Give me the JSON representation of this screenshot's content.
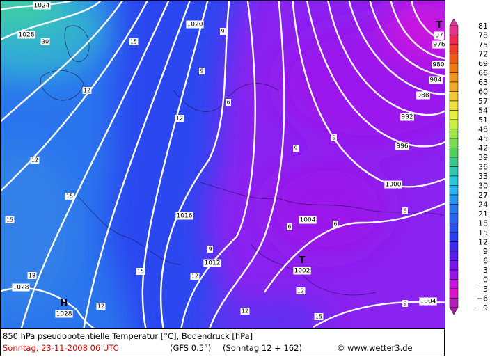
{
  "map": {
    "colorbar": [
      "81",
      "78",
      "75",
      "72",
      "69",
      "66",
      "63",
      "60",
      "57",
      "54",
      "51",
      "48",
      "45",
      "42",
      "39",
      "36",
      "33",
      "30",
      "27",
      "24",
      "21",
      "18",
      "15",
      "12",
      "9",
      "6",
      "3",
      "0",
      "−3",
      "−6",
      "−9"
    ],
    "isobar_labels": [
      "1024",
      "1028",
      "1020",
      "1016",
      "1012",
      "1004",
      "1000",
      "996",
      "992",
      "988",
      "984",
      "980",
      "976",
      "1028",
      "1004"
    ],
    "pressure_centers": [
      {
        "symbol": "H",
        "value": "1028"
      },
      {
        "symbol": "T",
        "value": "1002"
      },
      {
        "symbol": "T",
        "value": "97"
      }
    ],
    "temperature_labels": [
      "30",
      "15",
      "12",
      "9",
      "9",
      "6",
      "12",
      "12",
      "15",
      "15",
      "18",
      "12",
      "15",
      "9",
      "12",
      "12",
      "12",
      "15",
      "9",
      "9",
      "6",
      "6",
      "9",
      "6"
    ]
  },
  "footer": {
    "title": "850 hPa pseudopotentielle Temperatur [°C], Bodendruck [hPa]",
    "date": "Sonntag, 23-11-2008  06 UTC",
    "model": "(GFS 0.5°)",
    "run": "(Sonntag 12 + 162)",
    "source": "© www.wetter3.de"
  }
}
